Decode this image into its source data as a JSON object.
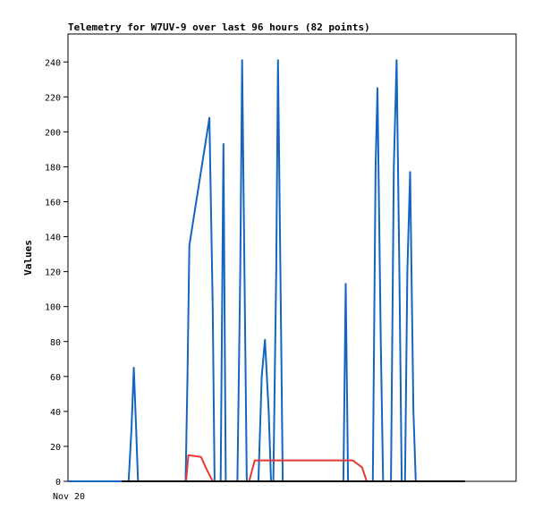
{
  "chart_data": {
    "type": "line",
    "title": "Telemetry for W7UV-9 over last 96 hours (82 points)",
    "xlabel": "",
    "ylabel": "Values",
    "x_ticks": [
      "Nov 20"
    ],
    "ylim": [
      0,
      256
    ],
    "y_ticks": [
      0,
      20,
      40,
      60,
      80,
      100,
      120,
      140,
      160,
      180,
      200,
      220,
      240
    ],
    "grid": false,
    "legend": "none",
    "xlim": [
      0,
      96
    ],
    "series": [
      {
        "color": "#1565c0",
        "points": [
          [
            0,
            0
          ],
          [
            11.5,
            0
          ],
          [
            13.0,
            0
          ],
          [
            13.6,
            30
          ],
          [
            14.1,
            65
          ],
          [
            14.6,
            30
          ],
          [
            15.0,
            0
          ],
          [
            25.2,
            0
          ],
          [
            25.6,
            60
          ],
          [
            26.0,
            135
          ],
          [
            30.3,
            208
          ],
          [
            31.0,
            100
          ],
          [
            31.4,
            0
          ],
          [
            32.7,
            0
          ],
          [
            33.3,
            193
          ],
          [
            33.8,
            0
          ],
          [
            36.3,
            0
          ],
          [
            36.9,
            120
          ],
          [
            37.3,
            241
          ],
          [
            37.8,
            120
          ],
          [
            38.3,
            0
          ],
          [
            40.8,
            0
          ],
          [
            41.5,
            60
          ],
          [
            42.2,
            81
          ],
          [
            43.0,
            40
          ],
          [
            43.5,
            0
          ],
          [
            44.0,
            0
          ],
          [
            44.6,
            120
          ],
          [
            45.0,
            241
          ],
          [
            45.5,
            120
          ],
          [
            46.0,
            0
          ],
          [
            59.0,
            0
          ],
          [
            59.5,
            113
          ],
          [
            60.0,
            0
          ],
          [
            65.3,
            0
          ],
          [
            65.9,
            180
          ],
          [
            66.3,
            225
          ],
          [
            67.0,
            80
          ],
          [
            67.5,
            0
          ],
          [
            69.2,
            0
          ],
          [
            69.8,
            180
          ],
          [
            70.4,
            241
          ],
          [
            71.0,
            120
          ],
          [
            71.5,
            0
          ],
          [
            72.2,
            0
          ],
          [
            72.7,
            120
          ],
          [
            73.3,
            177
          ],
          [
            74.0,
            40
          ],
          [
            74.5,
            0
          ],
          [
            85.0,
            0
          ]
        ]
      },
      {
        "color": "#e53935",
        "points": [
          [
            11.5,
            0
          ],
          [
            25.3,
            0
          ],
          [
            25.8,
            15
          ],
          [
            28.5,
            14
          ],
          [
            29.5,
            8
          ],
          [
            31.0,
            0
          ],
          [
            38.8,
            0
          ],
          [
            40.0,
            12
          ],
          [
            55.0,
            12
          ],
          [
            61.0,
            12
          ],
          [
            63.0,
            8
          ],
          [
            64.0,
            0
          ],
          [
            85.0,
            0
          ]
        ]
      },
      {
        "color": "#000000",
        "points": [
          [
            11.5,
            0
          ],
          [
            85.0,
            0
          ]
        ]
      }
    ]
  }
}
